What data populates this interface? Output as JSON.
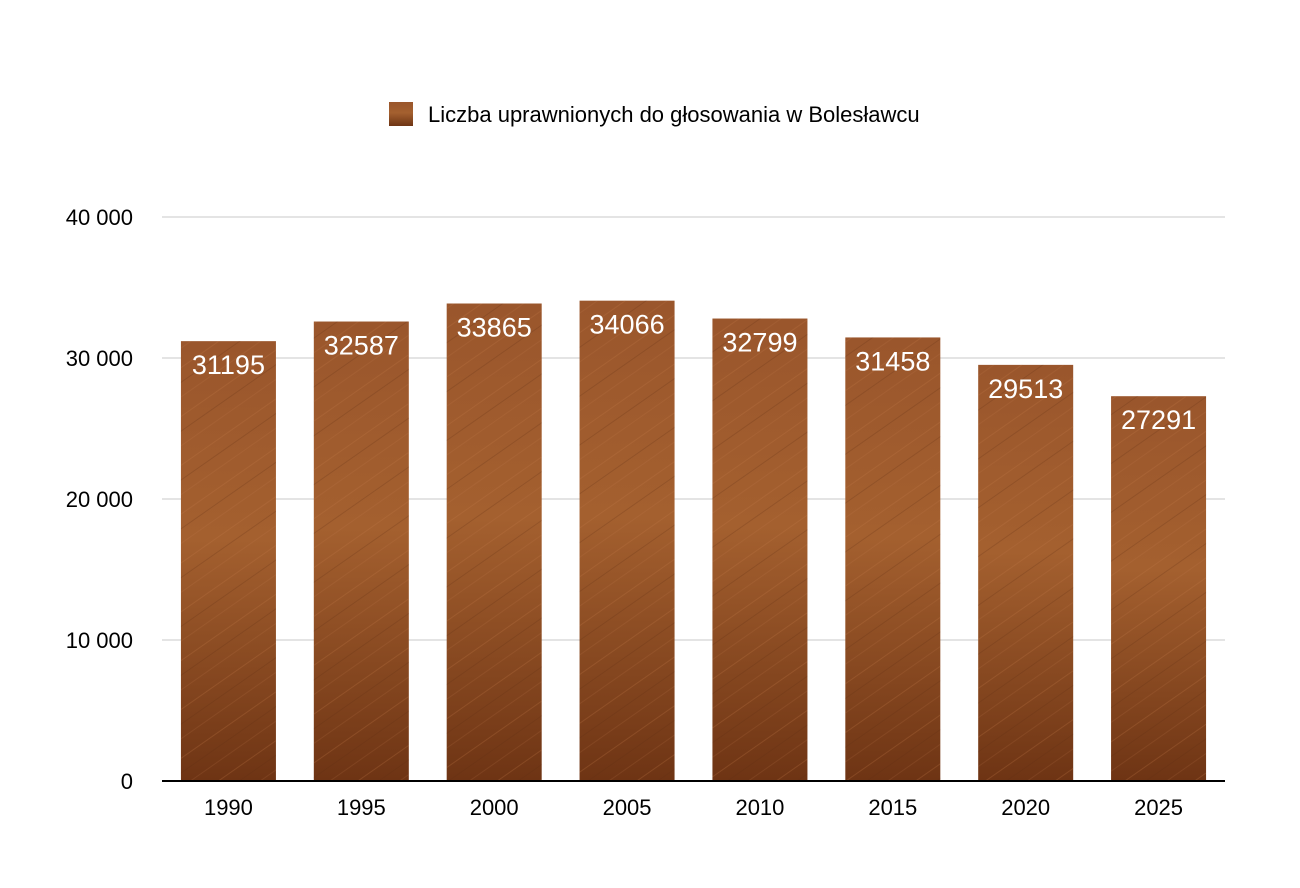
{
  "chart_data": {
    "type": "bar",
    "title": "",
    "xlabel": "",
    "ylabel": "",
    "categories": [
      "1990",
      "1995",
      "2000",
      "2005",
      "2010",
      "2015",
      "2020",
      "2025"
    ],
    "series": [
      {
        "name": "Liczba uprawnionych do głosowania w Bolesławcu",
        "values": [
          31195,
          32587,
          33865,
          34066,
          32799,
          31458,
          29513,
          27291
        ],
        "color": "#8a4a22"
      }
    ],
    "data_labels": [
      "31195",
      "32587",
      "33865",
      "34066",
      "32799",
      "31458",
      "29513",
      "27291"
    ],
    "ylim": [
      0,
      40000
    ],
    "yticks": [
      0,
      10000,
      20000,
      30000,
      40000
    ],
    "ytick_labels": [
      "0",
      "10 000",
      "20 000",
      "30 000",
      "40 000"
    ],
    "grid": true,
    "legend_position": "top-center",
    "colors": {
      "bar_dark": "#6e3414",
      "bar_mid": "#8f4d24",
      "bar_light": "#a9663a",
      "grid": "#c8c8c8",
      "axis": "#000000"
    }
  }
}
